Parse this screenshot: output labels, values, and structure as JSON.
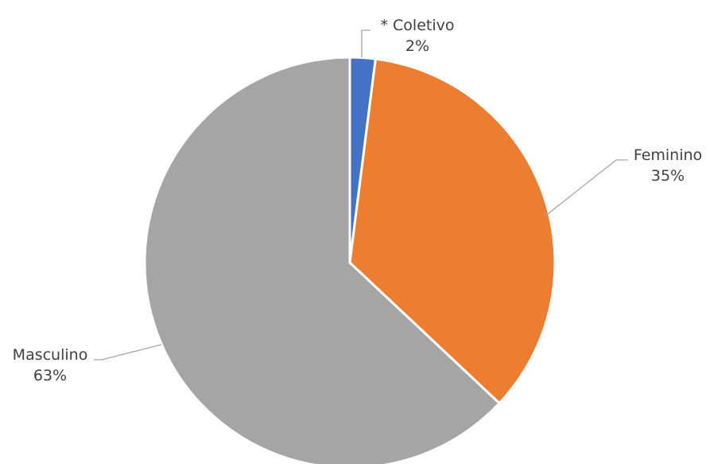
{
  "chart_data": {
    "type": "pie",
    "title": "",
    "categories": [
      "* Coletivo",
      "Feminino",
      "Masculino"
    ],
    "values": [
      2,
      35,
      63
    ],
    "value_labels": [
      "2%",
      "35%",
      "63%"
    ],
    "colors": [
      "#4472C4",
      "#ED7D31",
      "#A5A5A5"
    ],
    "start_angle": "12 o'clock, clockwise",
    "legend": "none",
    "data_labels": "outside with leader lines"
  }
}
